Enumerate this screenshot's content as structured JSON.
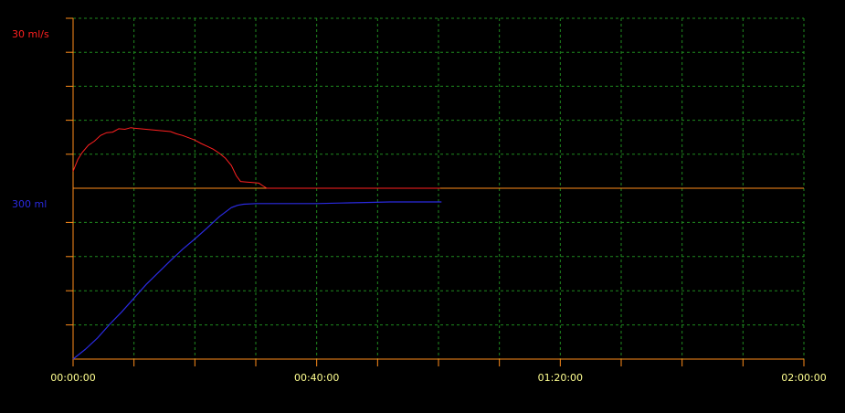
{
  "colors": {
    "background": "#000000",
    "axis": "#ff8c1a",
    "grid": "#1f8a1f",
    "flow_series": "#ff2020",
    "volume_series": "#2a2ae0",
    "time_labels": "#ffff90"
  },
  "chart_data": [
    {
      "type": "line",
      "panel": "top",
      "ylabel": "30 ml/s",
      "ylim": [
        0,
        30
      ],
      "xlim": [
        0,
        120
      ],
      "grid": true,
      "series": [
        {
          "color": "#ff2020",
          "x": [
            0,
            0.3,
            0.8,
            1.5,
            2.5,
            3.5,
            4.5,
            5.5,
            6.5,
            7.5,
            8.5,
            9.5,
            10,
            11,
            12,
            13,
            14,
            15,
            16,
            17,
            18,
            19,
            20,
            21,
            22,
            23,
            24,
            25,
            26,
            26.8,
            27.5,
            28.5,
            29.5,
            30.5,
            31.2,
            31.8,
            60.3
          ],
          "y": [
            3,
            3.8,
            5.1,
            6.3,
            7.6,
            8.3,
            9.3,
            9.8,
            9.9,
            10.5,
            10.4,
            10.7,
            10.6,
            10.5,
            10.4,
            10.3,
            10.2,
            10.1,
            10.0,
            9.6,
            9.3,
            8.9,
            8.5,
            7.9,
            7.4,
            6.9,
            6.2,
            5.3,
            4.0,
            2.2,
            1.2,
            1.1,
            1.0,
            0.9,
            0.4,
            0.0,
            0.0
          ]
        }
      ]
    },
    {
      "type": "line",
      "panel": "bottom",
      "ylabel": "300 ml",
      "ylim": [
        0,
        300
      ],
      "xlim": [
        0,
        120
      ],
      "grid": true,
      "x_tick_labels": [
        "00:00:00",
        "00:40:00",
        "01:20:00",
        "02:00:00"
      ],
      "series": [
        {
          "color": "#2a2ae0",
          "x": [
            0,
            2,
            4,
            6,
            8,
            10,
            12,
            14,
            16,
            18,
            20,
            22,
            24,
            26,
            27,
            28,
            30,
            33,
            36,
            40,
            44,
            48,
            52,
            56,
            60.5
          ],
          "y": [
            0,
            17,
            37,
            61,
            83,
            107,
            131,
            152,
            173,
            193,
            211,
            230,
            250,
            266,
            270,
            272,
            273,
            273,
            273,
            273,
            274,
            275,
            276,
            276,
            276
          ]
        }
      ]
    }
  ]
}
